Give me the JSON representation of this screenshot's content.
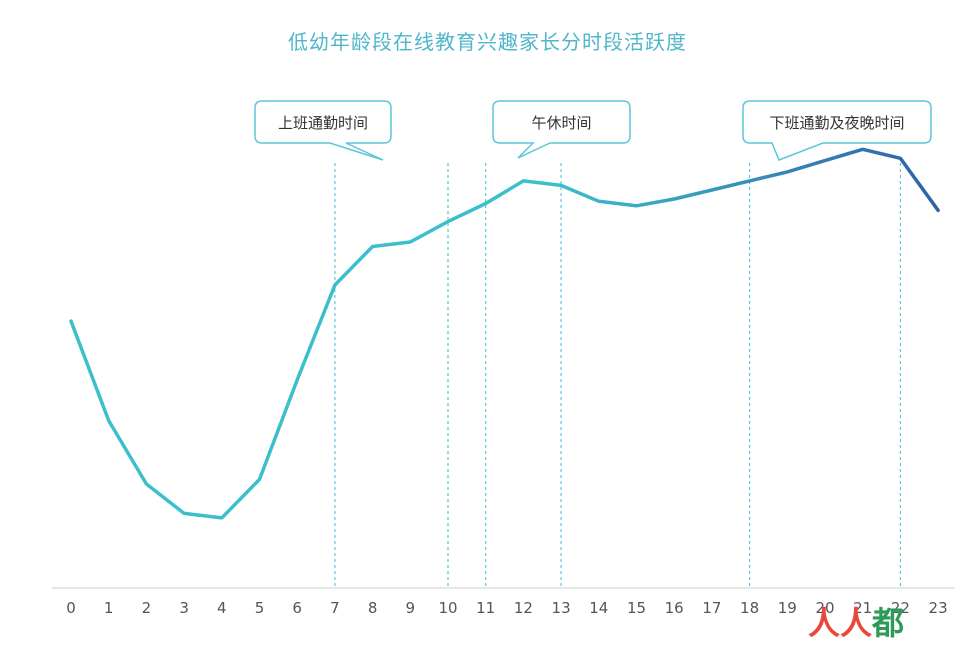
{
  "chart_data": {
    "type": "line",
    "title": "低幼年龄段在线教育兴趣家长分时段活跃度",
    "xlabel": "",
    "ylabel": "",
    "categories": [
      "0",
      "1",
      "2",
      "3",
      "4",
      "5",
      "6",
      "7",
      "8",
      "9",
      "10",
      "11",
      "12",
      "13",
      "14",
      "15",
      "16",
      "17",
      "18",
      "19",
      "20",
      "21",
      "22",
      "23"
    ],
    "series": [
      {
        "values": [
          59,
          37,
          23,
          16.5,
          15.5,
          24,
          46,
          67,
          75.5,
          76.5,
          81,
          85,
          90,
          89,
          85.5,
          84.5,
          86,
          88,
          90,
          92,
          94.5,
          97,
          95,
          83.5
        ]
      }
    ],
    "ylim": [
      0,
      130
    ],
    "y_axis_shown": false,
    "grid": false,
    "legend": "none",
    "reference_lines_at_x": [
      7,
      10,
      11,
      13,
      18,
      22
    ],
    "annotations": [
      {
        "text": "上班通勤时间",
        "span": [
          7,
          10
        ]
      },
      {
        "text": "午休时间",
        "span": [
          11,
          13
        ]
      },
      {
        "text": "下班通勤及夜晚时间",
        "span": [
          18,
          22
        ]
      }
    ],
    "colors": {
      "line_start": "#3dbfcb",
      "line_end": "#2f62a6",
      "reference_line": "#5cc6d9",
      "callout_border": "#5cc6d9",
      "title": "#4fb6cc",
      "axis": "#cccccc"
    }
  },
  "watermark": {
    "part1": "人",
    "part2": "人",
    "part3": "都"
  }
}
